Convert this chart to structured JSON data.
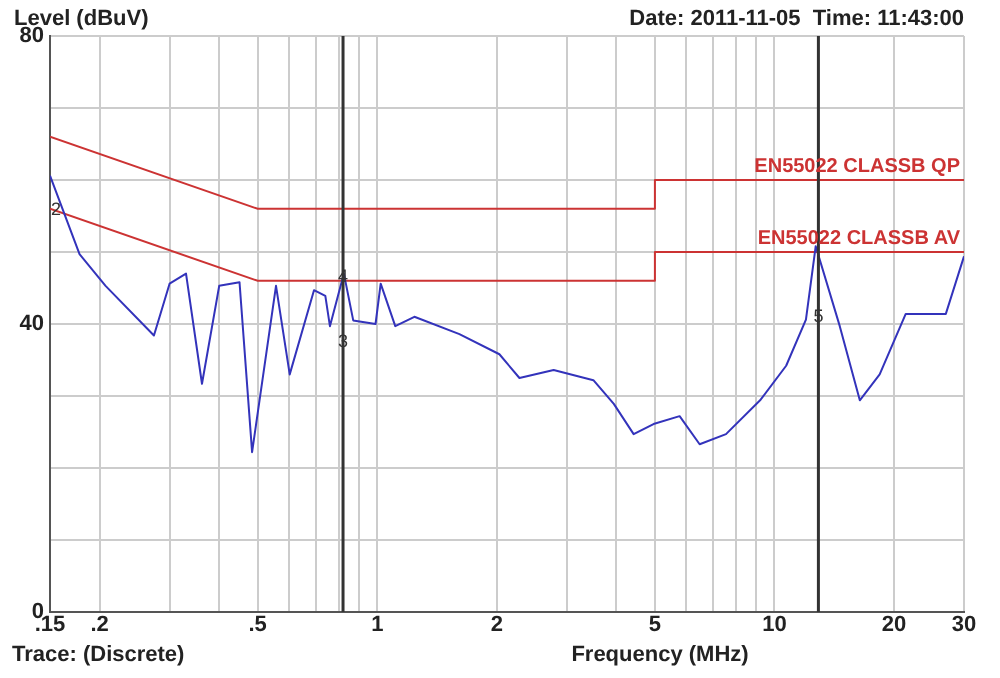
{
  "chart_data": {
    "type": "line",
    "subtitle": "Date: 2011-11-05  Time: 11:43:00",
    "ylabel": "Level (dBuV)",
    "xlabel": "Frequency (MHz)",
    "log": "x",
    "grid": true,
    "xlim": [
      0.15,
      30
    ],
    "ylim": [
      0,
      80
    ],
    "xticks": [
      {
        "value": 0.15,
        "label": ".15"
      },
      {
        "value": 0.2,
        "label": ".2"
      },
      {
        "value": 0.3,
        "label": null
      },
      {
        "value": 0.4,
        "label": null
      },
      {
        "value": 0.5,
        "label": ".5"
      },
      {
        "value": 0.6,
        "label": null
      },
      {
        "value": 0.7,
        "label": null
      },
      {
        "value": 0.8,
        "label": null
      },
      {
        "value": 0.9,
        "label": null
      },
      1,
      2,
      {
        "value": 3,
        "label": null
      },
      {
        "value": 4,
        "label": null
      },
      5,
      {
        "value": 6,
        "label": null
      },
      {
        "value": 7,
        "label": null
      },
      {
        "value": 8,
        "label": null
      },
      {
        "value": 9,
        "label": null
      },
      10,
      20,
      30
    ],
    "yticks": [
      0,
      {
        "value": 10,
        "label": null
      },
      {
        "value": 20,
        "label": null
      },
      {
        "value": 30,
        "label": null
      },
      40,
      {
        "value": 50,
        "label": null
      },
      {
        "value": 60,
        "label": null
      },
      {
        "value": 70,
        "label": null
      },
      80
    ],
    "series": [
      {
        "color": "#3333bb",
        "x": [
          0.15,
          0.178,
          0.207,
          0.274,
          0.3,
          0.33,
          0.362,
          0.4,
          0.45,
          0.484,
          0.556,
          0.602,
          0.693,
          0.74,
          0.76,
          0.824,
          0.87,
          0.99,
          1.02,
          1.11,
          1.24,
          1.61,
          2.03,
          2.28,
          2.78,
          3.5,
          3.94,
          4.42,
          4.96,
          5.77,
          6.48,
          7.55,
          9.2,
          10.7,
          12.0,
          12.7,
          14.6,
          16.4,
          18.4,
          21.4,
          27,
          30
        ],
        "values": [
          60.6,
          49.7,
          45.3,
          38.4,
          45.6,
          47,
          31.7,
          45.3,
          45.8,
          22.2,
          45.3,
          33,
          44.7,
          43.9,
          39.7,
          47,
          40.5,
          40,
          45.6,
          39.7,
          41,
          38.6,
          35.8,
          32.5,
          33.6,
          32.2,
          28.9,
          24.7,
          26.1,
          27.2,
          23.3,
          24.7,
          29.4,
          34.2,
          40.6,
          50.8,
          39.7,
          29.4,
          33,
          41.4,
          41.4,
          49.4
        ]
      },
      {
        "name": "EN55022 CLASSB QP",
        "color": "#cc3333",
        "x": [
          0.15,
          0.5,
          5,
          5,
          30
        ],
        "values": [
          66,
          56,
          56,
          60,
          60
        ]
      },
      {
        "name": "EN55022 CLASSB AV",
        "color": "#cc3333",
        "x": [
          0.15,
          0.5,
          5,
          5,
          30
        ],
        "values": [
          56,
          46,
          46,
          50,
          50
        ]
      }
    ],
    "ref_lines": [
      {
        "axis": "x",
        "value": 0.82,
        "color": "#333333"
      },
      {
        "axis": "x",
        "value": 12.9,
        "color": "#333333"
      }
    ],
    "annotations": [
      {
        "text": "2",
        "x": 0.15,
        "y": 55.8
      },
      {
        "text": "4",
        "x": 0.82,
        "y": 46.5
      },
      {
        "text": "3",
        "x": 0.82,
        "y": 37.5
      },
      {
        "text": "5",
        "x": 12.9,
        "y": 41
      },
      "Trace: (Discrete)"
    ]
  }
}
